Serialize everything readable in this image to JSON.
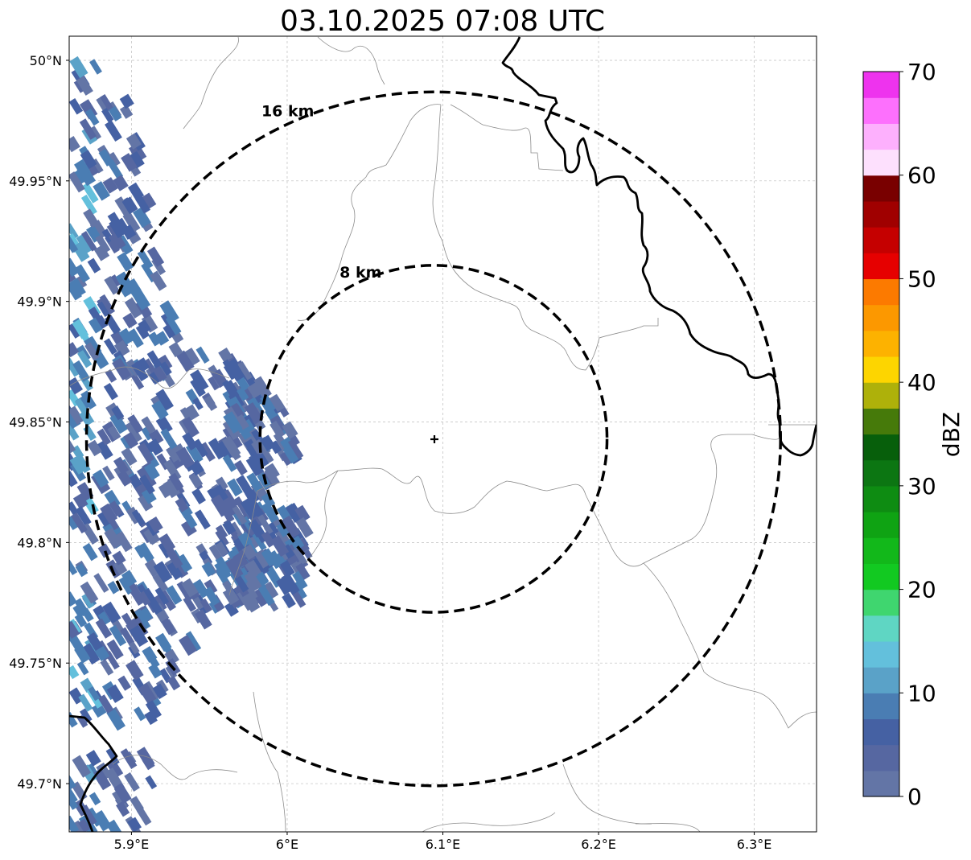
{
  "title": "03.10.2025 07:08 UTC",
  "map": {
    "lon_range": [
      5.86,
      6.34
    ],
    "lat_range": [
      49.68,
      50.01
    ],
    "lon_ticks": [
      {
        "value": 5.9,
        "label": "5.9°E"
      },
      {
        "value": 6.0,
        "label": "6°E"
      },
      {
        "value": 6.1,
        "label": "6.1°E"
      },
      {
        "value": 6.2,
        "label": "6.2°E"
      },
      {
        "value": 6.3,
        "label": "6.3°E"
      }
    ],
    "lat_ticks": [
      {
        "value": 49.7,
        "label": "49.7°N"
      },
      {
        "value": 49.75,
        "label": "49.75°N"
      },
      {
        "value": 49.8,
        "label": "49.8°N"
      },
      {
        "value": 49.85,
        "label": "49.85°N"
      },
      {
        "value": 49.9,
        "label": "49.9°N"
      },
      {
        "value": 49.95,
        "label": "49.95°N"
      },
      {
        "value": 50.0,
        "label": "50°N"
      }
    ],
    "gridlines": true,
    "radar_site": {
      "lon": 6.094,
      "lat": 49.843
    },
    "range_rings": [
      {
        "label": "8 km",
        "radius_km": 8
      },
      {
        "label": "16 km",
        "radius_km": 16
      }
    ]
  },
  "colorbar": {
    "label": "dBZ",
    "ticks": [
      "0",
      "10",
      "20",
      "30",
      "40",
      "50",
      "60",
      "70"
    ],
    "range": [
      0,
      70
    ],
    "step": 2.5,
    "colors": [
      "#6375a6",
      "#5667a1",
      "#4561a3",
      "#4a7db3",
      "#5aa2c8",
      "#63c0dc",
      "#5fd6c3",
      "#3fd66f",
      "#12c921",
      "#12b81a",
      "#0fa313",
      "#0e8c12",
      "#0c7612",
      "#075f0b",
      "#467a0a",
      "#aeb10a",
      "#fdd500",
      "#fdb200",
      "#fc9800",
      "#fc7a00",
      "#e60000",
      "#c50000",
      "#a00000",
      "#790000",
      "#fde0fd",
      "#fdb0fd",
      "#fd70fd",
      "#ee33ee"
    ]
  }
}
